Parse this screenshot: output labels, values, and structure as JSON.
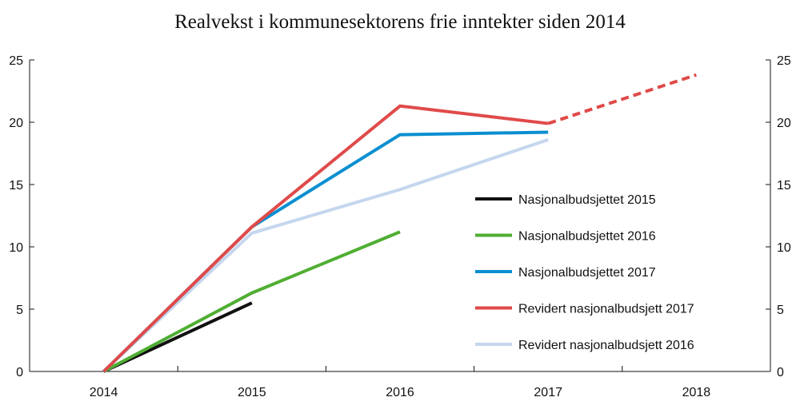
{
  "chart_data": {
    "type": "line",
    "title": "Realvekst i kommunesektorens frie inntekter siden 2014",
    "xlabel": "",
    "ylabel": "",
    "x": [
      "2014",
      "2015",
      "2016",
      "2017",
      "2018"
    ],
    "ylim": [
      0,
      25
    ],
    "yticks": [
      0,
      5,
      10,
      15,
      20,
      25
    ],
    "grid": false,
    "legend_position": "center-right",
    "series": [
      {
        "name": "Nasjonalbudsjettet 2015",
        "color": "#111111",
        "values": [
          0,
          5.5,
          null,
          null,
          null
        ]
      },
      {
        "name": "Nasjonalbudsjettet 2016",
        "color": "#4fae32",
        "values": [
          0,
          6.3,
          11.2,
          null,
          null
        ]
      },
      {
        "name": "Nasjonalbudsjettet 2017",
        "color": "#0a8fd0",
        "values": [
          0,
          11.6,
          19.0,
          19.2,
          null
        ]
      },
      {
        "name": "Revidert nasjonalbudsjett 2017",
        "color": "#e04a4a",
        "values": [
          0,
          11.6,
          21.3,
          19.9,
          23.8
        ],
        "dashed_from": "2017"
      },
      {
        "name": "Revidert nasjonalbudsjett 2016",
        "color": "#c5d6ee",
        "values": [
          0,
          11.1,
          14.6,
          18.6,
          null
        ]
      }
    ]
  }
}
